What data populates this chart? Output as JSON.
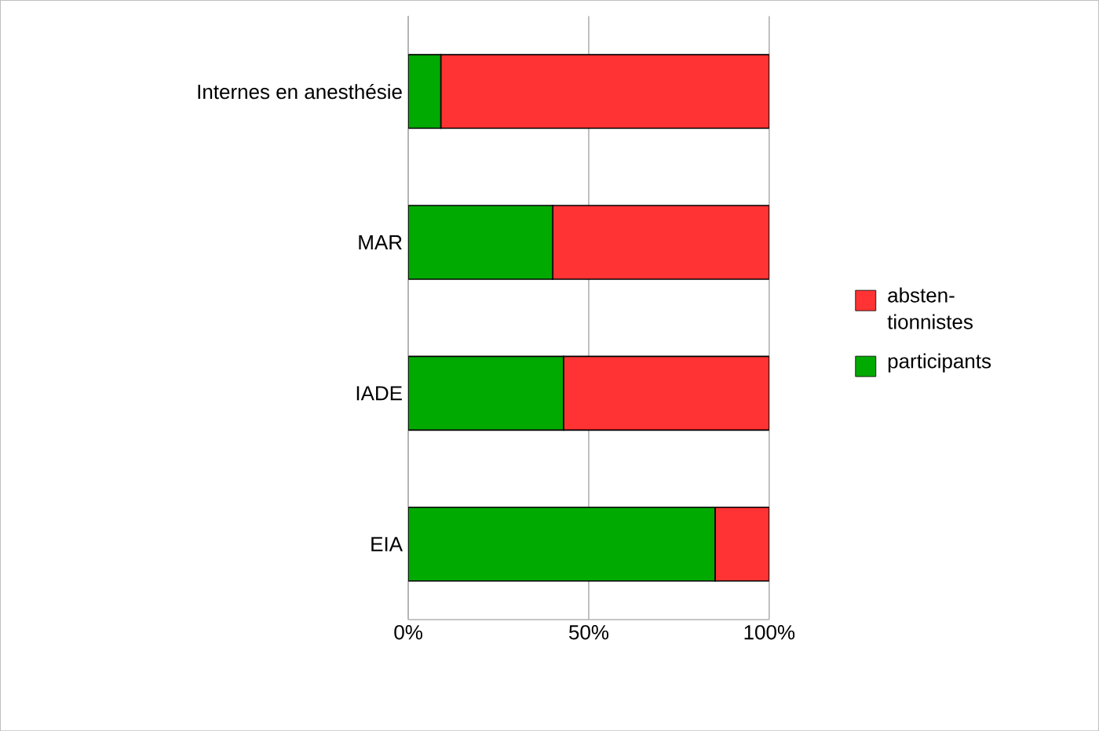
{
  "chart_data": {
    "type": "bar",
    "orientation": "horizontal",
    "stacked": true,
    "categories": [
      "Internes en anesthésie",
      "MAR",
      "IADE",
      "EIA"
    ],
    "series": [
      {
        "name": "participants",
        "color": "#00aa00",
        "values": [
          9,
          40,
          43,
          85
        ]
      },
      {
        "name": "absten-tionnistes",
        "color": "#ff3333",
        "values": [
          91,
          60,
          57,
          15
        ]
      }
    ],
    "xlim": [
      0,
      100
    ],
    "xticks": [
      {
        "value": 0,
        "label": "0%"
      },
      {
        "value": 50,
        "label": "50%"
      },
      {
        "value": 100,
        "label": "100%"
      }
    ],
    "grid": "x",
    "legend": "right"
  }
}
